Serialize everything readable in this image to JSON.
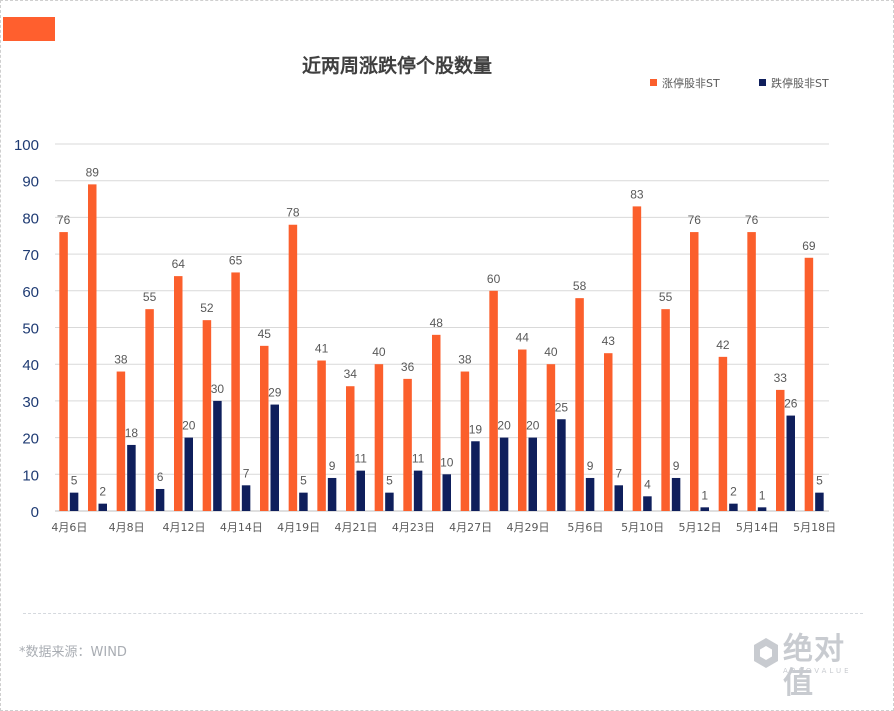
{
  "colors": {
    "accent": "#ff5f2e",
    "up": "#fb5f2c",
    "down": "#0f1f5c",
    "grid": "#d9d9d9",
    "label": "#595959"
  },
  "source_text": "*数据来源：WIND",
  "logo": {
    "name": "绝对值",
    "subtitle": "ABSOVALUE",
    "icon": "cube-logo-icon"
  },
  "chart_data": {
    "type": "bar",
    "title": "近两周涨跌停个股数量",
    "legend_position": "top-right",
    "grid": true,
    "ylim": [
      0,
      100
    ],
    "yticks": [
      0,
      10,
      20,
      30,
      40,
      50,
      60,
      70,
      80,
      90,
      100
    ],
    "categories": [
      "",
      "",
      "",
      "",
      "",
      "",
      "",
      "",
      "",
      "",
      "",
      "",
      "",
      "",
      "",
      "",
      "",
      "",
      "",
      "",
      "",
      "",
      "",
      "",
      "",
      "",
      ""
    ],
    "x_tick_labels": [
      {
        "index": 0,
        "label": "4月6日"
      },
      {
        "index": 2,
        "label": "4月8日"
      },
      {
        "index": 4,
        "label": "4月12日"
      },
      {
        "index": 6,
        "label": "4月14日"
      },
      {
        "index": 8,
        "label": "4月19日"
      },
      {
        "index": 10,
        "label": "4月21日"
      },
      {
        "index": 12,
        "label": "4月23日"
      },
      {
        "index": 14,
        "label": "4月27日"
      },
      {
        "index": 16,
        "label": "4月29日"
      },
      {
        "index": 18,
        "label": "5月6日"
      },
      {
        "index": 20,
        "label": "5月10日"
      },
      {
        "index": 22,
        "label": "5月12日"
      },
      {
        "index": 24,
        "label": "5月14日"
      },
      {
        "index": 26,
        "label": "5月18日"
      }
    ],
    "series": [
      {
        "name": "涨停股非ST",
        "color": "#fb5f2c",
        "values": [
          76,
          89,
          38,
          55,
          64,
          52,
          65,
          45,
          78,
          41,
          34,
          40,
          36,
          48,
          38,
          60,
          44,
          40,
          58,
          43,
          83,
          55,
          76,
          42,
          76,
          33,
          69
        ]
      },
      {
        "name": "跌停股非ST",
        "color": "#0f1f5c",
        "values": [
          5,
          2,
          18,
          6,
          20,
          30,
          7,
          29,
          5,
          9,
          11,
          5,
          11,
          10,
          19,
          20,
          20,
          25,
          9,
          7,
          4,
          9,
          1,
          2,
          1,
          26,
          5
        ]
      }
    ]
  }
}
